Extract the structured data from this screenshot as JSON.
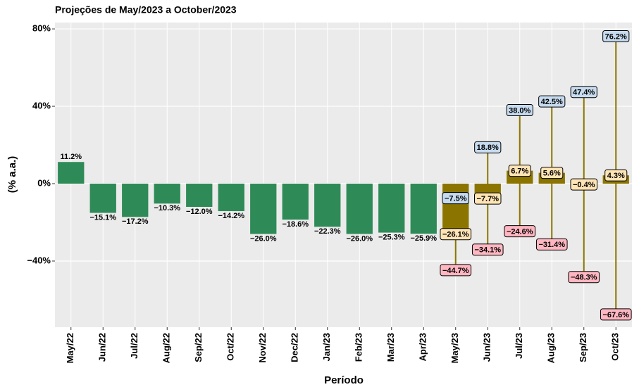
{
  "chart_data": {
    "type": "bar_projection",
    "title": "Projeções de May/2023 a October/2023",
    "x_label": "Período",
    "y_label": "(% a.a.)",
    "categories": [
      "May/22",
      "Jun/22",
      "Jul/22",
      "Aug/22",
      "Sep/22",
      "Oct/22",
      "Nov/22",
      "Dec/22",
      "Jan/23",
      "Feb/23",
      "Mar/23",
      "Apr/23",
      "May/23",
      "Jun/23",
      "Jul/23",
      "Aug/23",
      "Sep/23",
      "Oct/23"
    ],
    "ylim": [
      -74.2,
      83.3
    ],
    "yticks": [
      {
        "value": -40,
        "label": "−40%"
      },
      {
        "value": 0,
        "label": "0%"
      },
      {
        "value": 40,
        "label": "40%"
      },
      {
        "value": 80,
        "label": "80%"
      }
    ],
    "grid": true,
    "series": [
      {
        "color": "#2e8b57",
        "values": [
          11.2,
          -15.1,
          -17.2,
          -10.3,
          -12.0,
          -14.2,
          -26.0,
          -18.6,
          -22.3,
          -26.0,
          -25.3,
          -25.9,
          null,
          null,
          null,
          null,
          null,
          null
        ],
        "value_labels": [
          "11.2%",
          "−15.1%",
          "−17.2%",
          "−10.3%",
          "−12.0%",
          "−14.2%",
          "−26.0%",
          "−18.6%",
          "−22.3%",
          "−26.0%",
          "−25.3%",
          "−25.9%",
          null,
          null,
          null,
          null,
          null,
          null
        ]
      },
      {
        "color": "#8b7500",
        "label_fill": "#ffe4b5",
        "upper_label_fill": "#c6dbef",
        "lower_label_fill": "#ffb6c1",
        "values": [
          null,
          null,
          null,
          null,
          null,
          null,
          null,
          null,
          null,
          null,
          null,
          null,
          -26.1,
          -7.7,
          6.7,
          5.6,
          -0.4,
          4.3
        ],
        "value_labels": [
          null,
          null,
          null,
          null,
          null,
          null,
          null,
          null,
          null,
          null,
          null,
          null,
          "−26.1%",
          "−7.7%",
          "6.7%",
          "5.6%",
          "−0.4%",
          "4.3%"
        ],
        "upper": [
          null,
          null,
          null,
          null,
          null,
          null,
          null,
          null,
          null,
          null,
          null,
          null,
          -7.5,
          18.8,
          38.0,
          42.5,
          47.4,
          76.2
        ],
        "upper_labels": [
          null,
          null,
          null,
          null,
          null,
          null,
          null,
          null,
          null,
          null,
          null,
          null,
          "−7.5%",
          "18.8%",
          "38.0%",
          "42.5%",
          "47.4%",
          "76.2%"
        ],
        "lower": [
          null,
          null,
          null,
          null,
          null,
          null,
          null,
          null,
          null,
          null,
          null,
          null,
          -44.7,
          -34.1,
          -24.6,
          -31.4,
          -48.3,
          -67.6
        ],
        "lower_labels": [
          null,
          null,
          null,
          null,
          null,
          null,
          null,
          null,
          null,
          null,
          null,
          null,
          "−44.7%",
          "−34.1%",
          "−24.6%",
          "−31.4%",
          "−48.3%",
          "−67.6%"
        ]
      }
    ]
  }
}
